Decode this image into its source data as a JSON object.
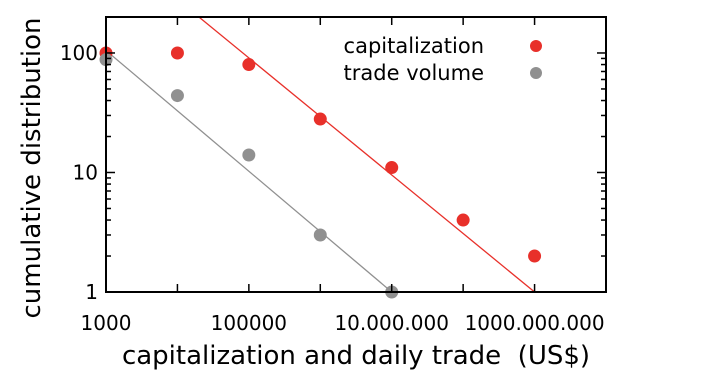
{
  "chart_data": {
    "type": "scatter",
    "title": "",
    "xlabel": "capitalization and daily trade  (US$)",
    "ylabel": "cumulative distribution",
    "xscale": "log",
    "yscale": "log",
    "xlim": [
      1000,
      10000000000
    ],
    "ylim": [
      1,
      200
    ],
    "xticks": [
      {
        "value": 1000,
        "label": "1000"
      },
      {
        "value": 100000,
        "label": "100000"
      },
      {
        "value": 10000000,
        "label": "10.000.000"
      },
      {
        "value": 1000000000,
        "label": "1000.000.000"
      }
    ],
    "yticks": [
      {
        "value": 1,
        "label": "1"
      },
      {
        "value": 10,
        "label": "10"
      },
      {
        "value": 100,
        "label": "100"
      }
    ],
    "grid": false,
    "legend_position": "top-right",
    "series": [
      {
        "name": "capitalization",
        "color": "#e8302a",
        "points": [
          {
            "x": 1000,
            "y": 100
          },
          {
            "x": 10000,
            "y": 100
          },
          {
            "x": 100000,
            "y": 80
          },
          {
            "x": 1000000,
            "y": 28
          },
          {
            "x": 10000000,
            "y": 11
          },
          {
            "x": 100000000,
            "y": 4
          },
          {
            "x": 1000000000,
            "y": 2
          }
        ],
        "fit_line": {
          "x": [
            20000,
            1000000000
          ],
          "y": [
            200,
            1
          ]
        }
      },
      {
        "name": "trade volume",
        "color": "#909090",
        "points": [
          {
            "x": 1000,
            "y": 88
          },
          {
            "x": 10000,
            "y": 44
          },
          {
            "x": 100000,
            "y": 14
          },
          {
            "x": 1000000,
            "y": 3
          },
          {
            "x": 10000000,
            "y": 1
          }
        ],
        "fit_line": {
          "x": [
            1000,
            10000000
          ],
          "y": [
            105,
            1
          ]
        }
      }
    ]
  }
}
